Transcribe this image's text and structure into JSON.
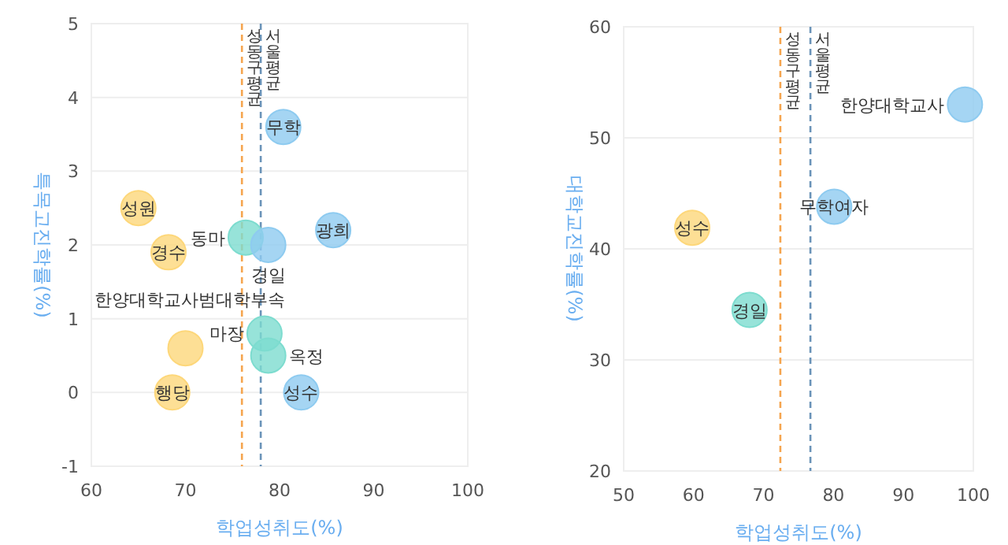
{
  "chart_data": [
    {
      "type": "scatter",
      "xlabel": "학업성취도(%)",
      "ylabel": "특목고진학률(%)",
      "marker": "circle",
      "grid": "y",
      "x": [
        80.4,
        65.0,
        68.2,
        76.4,
        78.8,
        85.7,
        78.4,
        78.8,
        70.0,
        68.6,
        82.3
      ],
      "values": [
        3.6,
        2.5,
        1.9,
        2.1,
        2.0,
        2.2,
        0.8,
        0.5,
        0.6,
        0.0,
        0.0
      ],
      "colors": [
        "#8ecbf0",
        "#fdd77a",
        "#fdd77a",
        "#7ddccf",
        "#8ecbf0",
        "#8ecbf0",
        "#7ddccf",
        "#7ddccf",
        "#fdd77a",
        "#fdd77a",
        "#8ecbf0"
      ],
      "xlim": [
        60,
        100
      ],
      "xticks": [
        60,
        70,
        80,
        90,
        100
      ],
      "ylim": [
        -1,
        5
      ],
      "yticks": [
        -1,
        0,
        1,
        2,
        3,
        4,
        5
      ],
      "ref_lines": [
        {
          "axis": "x",
          "value": 76,
          "label": "성동구 평균",
          "color": "#f5a54f",
          "line_style": "dashed"
        },
        {
          "axis": "x",
          "value": 78,
          "label": "서울 평균",
          "color": "#6a93b8",
          "line_style": "dashed"
        }
      ],
      "annotations": [
        {
          "text": "무학",
          "x": 80.4,
          "y": 3.6
        },
        {
          "text": "성원",
          "x": 65.0,
          "y": 2.5
        },
        {
          "text": "경수",
          "x": 68.2,
          "y": 1.9
        },
        {
          "text": "동마",
          "x": 76.4,
          "y": 2.1
        },
        {
          "text": "경일",
          "x": 78.8,
          "y": 2.0
        },
        {
          "text": "광희",
          "x": 85.7,
          "y": 2.2
        },
        {
          "text": "마장",
          "x": 78.4,
          "y": 0.8
        },
        {
          "text": "옥정",
          "x": 78.8,
          "y": 0.5
        },
        {
          "text": "한양대학교사범대학부속",
          "x": 70.0,
          "y": 0.6
        },
        {
          "text": "행당",
          "x": 68.6,
          "y": 0.0
        },
        {
          "text": "성수",
          "x": 82.3,
          "y": 0.0
        }
      ]
    },
    {
      "type": "scatter",
      "xlabel": "학업성취도(%)",
      "ylabel": "대학교진학률(%)",
      "marker": "circle",
      "grid": "y",
      "x": [
        98.8,
        80.1,
        59.8,
        68.0
      ],
      "values": [
        53.0,
        43.8,
        41.9,
        34.5
      ],
      "colors": [
        "#8ecbf0",
        "#8ecbf0",
        "#fdd77a",
        "#7ddccf"
      ],
      "xlim": [
        50,
        100
      ],
      "xticks": [
        50,
        60,
        70,
        80,
        90,
        100
      ],
      "ylim": [
        20,
        60
      ],
      "yticks": [
        20,
        30,
        40,
        50,
        60
      ],
      "ref_lines": [
        {
          "axis": "x",
          "value": 72.4,
          "label": "성동구 평균",
          "color": "#f5a54f",
          "line_style": "dashed"
        },
        {
          "axis": "x",
          "value": 76.7,
          "label": "서울 평균",
          "color": "#6a93b8",
          "line_style": "dashed"
        }
      ],
      "annotations": [
        {
          "text": "한양대학교사",
          "x": 98.8,
          "y": 53.0
        },
        {
          "text": "무학여자",
          "x": 80.1,
          "y": 43.8
        },
        {
          "text": "성수",
          "x": 59.8,
          "y": 41.9
        },
        {
          "text": "경일",
          "x": 68.0,
          "y": 34.5
        }
      ]
    }
  ]
}
